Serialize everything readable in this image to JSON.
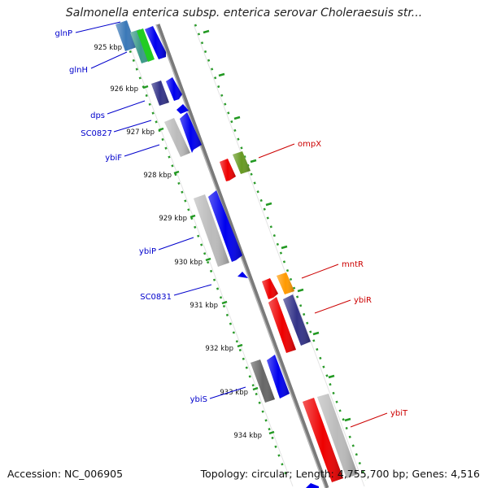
{
  "title": "Salmonella enterica subsp. enterica serovar Choleraesuis str...",
  "accession": "Accession: NC_006905",
  "summary": "Topology: circular; Length: 4,755,700 bp; Genes: 4,516",
  "colors": {
    "backbone": "#888888",
    "tick": "#229922",
    "forward_label": "#0000cc",
    "reverse_label": "#cc0000",
    "gene_blue": "#0000ee",
    "gene_gray": "#bbbbbb",
    "gene_red": "#ee0000"
  },
  "ticks": [
    {
      "label": "925 kbp"
    },
    {
      "label": "926 kbp"
    },
    {
      "label": "927 kbp"
    },
    {
      "label": "928 kbp"
    },
    {
      "label": "929 kbp"
    },
    {
      "label": "930 kbp"
    },
    {
      "label": "931 kbp"
    },
    {
      "label": "932 kbp"
    },
    {
      "label": "933 kbp"
    },
    {
      "label": "934 kbp"
    }
  ],
  "gene_labels_left": [
    {
      "name": "glnP"
    },
    {
      "name": "glnH"
    },
    {
      "name": "dps"
    },
    {
      "name": "SC0827"
    },
    {
      "name": "ybiF"
    },
    {
      "name": "ybiP"
    },
    {
      "name": "SC0831"
    },
    {
      "name": "ybiS"
    }
  ],
  "gene_labels_right": [
    {
      "name": "ompX"
    },
    {
      "name": "mntR"
    },
    {
      "name": "ybiR"
    },
    {
      "name": "ybiT"
    }
  ]
}
